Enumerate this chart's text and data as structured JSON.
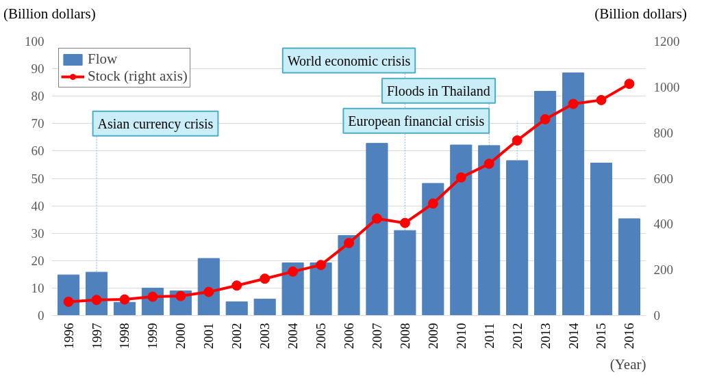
{
  "chart_data": {
    "type": "bar",
    "ylabel": "(Billion dollars)",
    "y2label": "(Billion dollars)",
    "xlabel": "(Year)",
    "categories": [
      "1996",
      "1997",
      "1998",
      "1999",
      "2000",
      "2001",
      "2002",
      "2003",
      "2004",
      "2005",
      "2006",
      "2007",
      "2008",
      "2009",
      "2010",
      "2011",
      "2012",
      "2013",
      "2014",
      "2015",
      "2016"
    ],
    "series": [
      {
        "name": "Flow",
        "color": "#4f81bd",
        "values": [
          14.8,
          15.8,
          4.8,
          10,
          9,
          20.8,
          5,
          6,
          19.2,
          19.2,
          29.2,
          62.8,
          31,
          48.2,
          62.2,
          62,
          56.5,
          81.8,
          88.5,
          55.6,
          35.3
        ]
      },
      {
        "name": "Stock (right axis)",
        "type": "line",
        "axis": "y2",
        "color": "#ff0000",
        "marker": "circle",
        "values": [
          60,
          68,
          70,
          82,
          85,
          103,
          131,
          161,
          192,
          221,
          317,
          424,
          405,
          490,
          604,
          664,
          766,
          859,
          926,
          943,
          1014
        ]
      }
    ],
    "ylim": [
      0,
      100
    ],
    "yticks": [
      0,
      10,
      20,
      30,
      40,
      50,
      60,
      70,
      80,
      90,
      100
    ],
    "y2lim": [
      0,
      1200
    ],
    "y2ticks": [
      0,
      200,
      400,
      600,
      800,
      1000,
      1200
    ],
    "grid": "y",
    "legend": "top left",
    "ref_lines": [
      {
        "axis": "x",
        "value": "1997",
        "label": "Asian currency crisis",
        "line_style": "dotted",
        "color": "#8ea9db"
      },
      {
        "axis": "x",
        "value": "2008",
        "label": "World economic crisis",
        "line_style": "dotted",
        "color": "#8ea9db"
      },
      {
        "axis": "x",
        "value": "2011",
        "label": "Floods in Thailand",
        "line_style": "dotted",
        "color": "#8ea9db"
      },
      {
        "axis": "x",
        "value": "2012",
        "label": "European financial crisis",
        "line_style": "dotted",
        "color": "#8ea9db"
      }
    ]
  }
}
